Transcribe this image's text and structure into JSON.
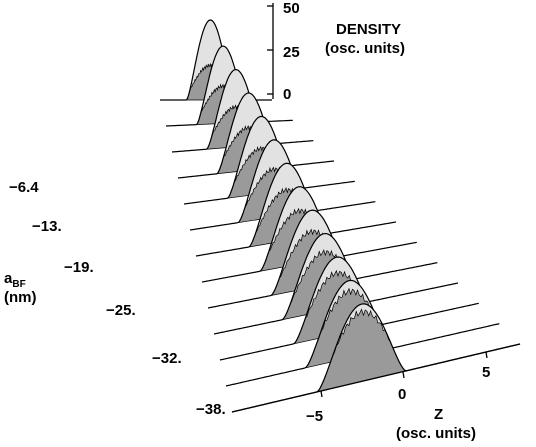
{
  "chart_data": {
    "type": "area",
    "style": "3d-waterfall",
    "title": "",
    "density_axis": {
      "label_line1": "DENSITY",
      "label_line2": "(osc. units)",
      "ticks": [
        "50",
        "25",
        "0"
      ],
      "range": [
        0,
        50
      ]
    },
    "z_axis": {
      "label_line1": "Z",
      "label_line2": "(osc. units)",
      "ticks": [
        "−5",
        "0",
        "5"
      ],
      "range": [
        -9,
        11
      ]
    },
    "a_axis": {
      "label_main": "a",
      "label_sub": "BF",
      "label_unit": "(nm)",
      "ticks": [
        "−6.4",
        "−13.",
        "−19.",
        "−25.",
        "−32.",
        "−38."
      ]
    },
    "grid": false,
    "legend": "none",
    "series": [
      {
        "a_bf": -1.0,
        "center_z": 0.0,
        "total_peak": 30,
        "total_width": 4.3,
        "inner_peak": 13,
        "inner_width": 5.0,
        "shoulder_z": 3.1,
        "shoulder_peak": 5
      },
      {
        "a_bf": -4.2,
        "center_z": 0.0,
        "total_peak": 29,
        "total_width": 4.2,
        "inner_peak": 14,
        "inner_width": 4.9,
        "shoulder_z": 3.1,
        "shoulder_peak": 4
      },
      {
        "a_bf": -7.4,
        "center_z": 0.0,
        "total_peak": 29,
        "total_width": 4.1,
        "inner_peak": 15,
        "inner_width": 4.8,
        "shoulder_z": 3.0,
        "shoulder_peak": 3
      },
      {
        "a_bf": -10.6,
        "center_z": 0.0,
        "total_peak": 29,
        "total_width": 4.0,
        "inner_peak": 16,
        "inner_width": 4.6,
        "shoulder_z": 2.9,
        "shoulder_peak": 2
      },
      {
        "a_bf": -13.8,
        "center_z": 0.0,
        "total_peak": 29,
        "total_width": 3.9,
        "inner_peak": 17,
        "inner_width": 4.4,
        "shoulder_z": 2.8,
        "shoulder_peak": 0
      },
      {
        "a_bf": -17.0,
        "center_z": 0.0,
        "total_peak": 29,
        "total_width": 3.8,
        "inner_peak": 18,
        "inner_width": 4.2,
        "shoulder_z": 2.7,
        "shoulder_peak": 0
      },
      {
        "a_bf": -20.2,
        "center_z": 0.0,
        "total_peak": 29,
        "total_width": 3.7,
        "inner_peak": 19,
        "inner_width": 4.0,
        "shoulder_z": 2.6,
        "shoulder_peak": 0
      },
      {
        "a_bf": -23.4,
        "center_z": 0.0,
        "total_peak": 29,
        "total_width": 3.6,
        "inner_peak": 20,
        "inner_width": 3.9,
        "shoulder_z": 2.5,
        "shoulder_peak": 0
      },
      {
        "a_bf": -26.6,
        "center_z": 0.0,
        "total_peak": 29,
        "total_width": 3.5,
        "inner_peak": 21,
        "inner_width": 3.7,
        "shoulder_z": 2.4,
        "shoulder_peak": 0
      },
      {
        "a_bf": -29.8,
        "center_z": 0.0,
        "total_peak": 29,
        "total_width": 3.4,
        "inner_peak": 22,
        "inner_width": 3.6,
        "shoulder_z": 2.3,
        "shoulder_peak": 0
      },
      {
        "a_bf": -33.0,
        "center_z": 0.0,
        "total_peak": 29,
        "total_width": 3.3,
        "inner_peak": 23,
        "inner_width": 3.5,
        "shoulder_z": 2.2,
        "shoulder_peak": 0
      },
      {
        "a_bf": -36.2,
        "center_z": 0.0,
        "total_peak": 29,
        "total_width": 3.2,
        "inner_peak": 25,
        "inner_width": 3.4,
        "shoulder_z": 2.1,
        "shoulder_peak": 0
      },
      {
        "a_bf": -39.4,
        "center_z": 0.0,
        "total_peak": 29,
        "total_width": 3.1,
        "inner_peak": 26,
        "inner_width": 3.3,
        "shoulder_z": 2.0,
        "shoulder_peak": 0
      }
    ],
    "colors": {
      "total_fill": "#e2e2e2",
      "inner_fill": "#9a9a9a",
      "line": "#000000",
      "background": "#ffffff"
    }
  }
}
